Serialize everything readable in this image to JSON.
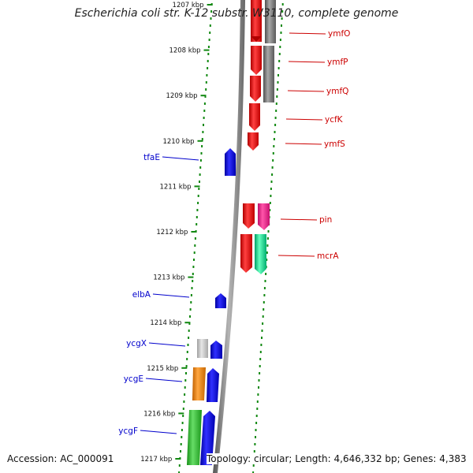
{
  "map": {
    "title": "Escherichia coli str. K-12 substr. W3110, complete genome",
    "accession": "Accession: AC_000091",
    "summary": "Topology: circular; Length: 4,646,332 bp; Genes: 4,383",
    "colors": {
      "backbone": "#7a7a7a",
      "dots": "#118811",
      "forward_label": "#cc0000",
      "reverse_label": "#0000cc"
    },
    "ruler_kbp": [
      "1207 kbp",
      "1208 kbp",
      "1209 kbp",
      "1210 kbp",
      "1211 kbp",
      "1212 kbp",
      "1213 kbp",
      "1214 kbp",
      "1215 kbp",
      "1216 kbp",
      "1217 kbp"
    ],
    "forward_genes": [
      {
        "label": "ymfO",
        "color": "#ff0000"
      },
      {
        "label": "ymfP",
        "color": "#ff0000"
      },
      {
        "label": "ymfQ",
        "color": "#ff0000"
      },
      {
        "label": "ycfK",
        "color": "#ff0000"
      },
      {
        "label": "ymfS",
        "color": "#ff0000"
      },
      {
        "label": "pin",
        "color": "#ff1a8c"
      },
      {
        "label": "mcrA",
        "color": "#00e58f"
      }
    ],
    "reverse_genes": [
      {
        "label": "tfaE",
        "color": "#0000ff"
      },
      {
        "label": "elbA",
        "color": "#0000ff"
      },
      {
        "label": "ycgX",
        "color": "#0000ff"
      },
      {
        "label": "ycgE",
        "color": "#0000ff"
      },
      {
        "label": "ycgF",
        "color": "#0000ff"
      }
    ]
  }
}
